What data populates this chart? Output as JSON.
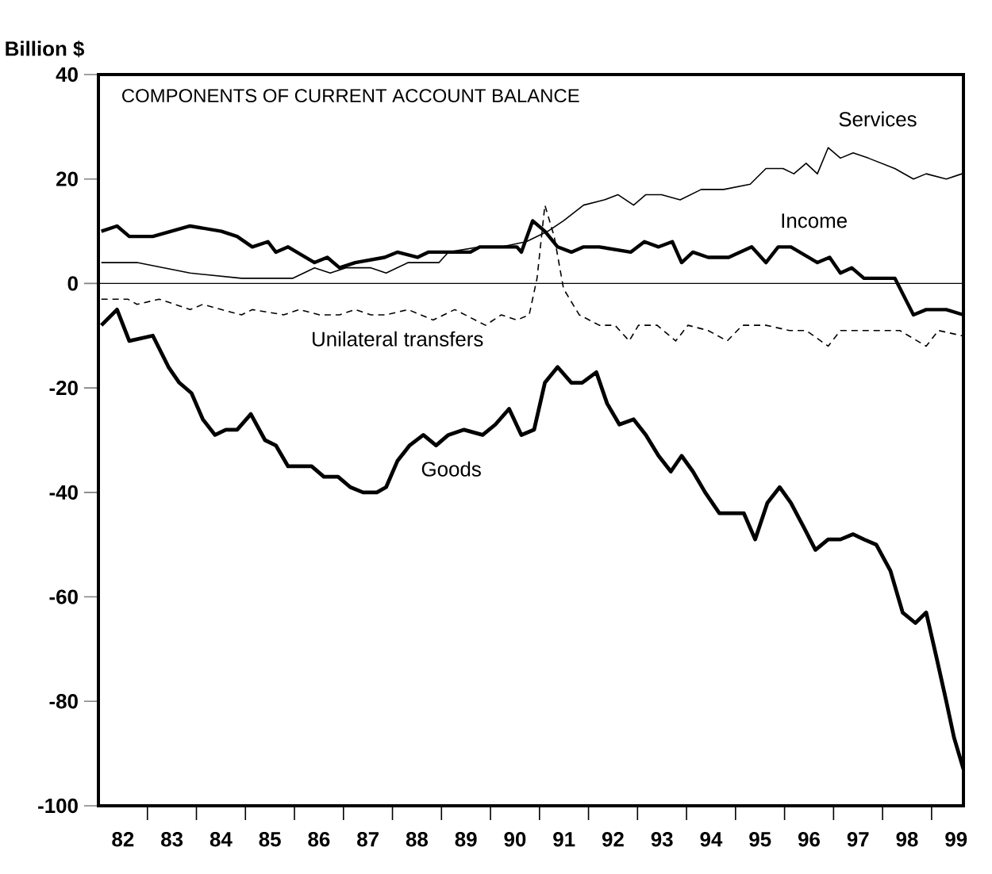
{
  "chart_data": {
    "type": "line",
    "title": "COMPONENTS OF CURRENT ACCOUNT BALANCE",
    "ylabel": "Billion $",
    "series": [
      {
        "name": "Goods",
        "color": "#000000",
        "line_style": "solid",
        "x": [
          82.06,
          82.38,
          82.63,
          83.11,
          83.43,
          83.65,
          83.9,
          84.13,
          84.38,
          84.6,
          84.83,
          85.11,
          85.4,
          85.62,
          85.87,
          86.1,
          86.35,
          86.6,
          86.89,
          87.14,
          87.4,
          87.68,
          87.87,
          88.1,
          88.35,
          88.63,
          88.89,
          89.14,
          89.46,
          89.84,
          90.1,
          90.38,
          90.63,
          90.89,
          91.11,
          91.37,
          91.65,
          91.87,
          92.16,
          92.38,
          92.63,
          92.92,
          93.17,
          93.43,
          93.68,
          93.9,
          94.13,
          94.38,
          94.67,
          94.92,
          95.17,
          95.4,
          95.65,
          95.9,
          96.13,
          96.41,
          96.63,
          96.89,
          97.14,
          97.4,
          97.62,
          97.87,
          98.16,
          98.41,
          98.67,
          98.89,
          99.11,
          99.3,
          99.46,
          99.65
        ],
        "values": [
          -8,
          -5,
          -11,
          -10,
          -16,
          -19,
          -21,
          -26,
          -29,
          -28,
          -28,
          -25,
          -30,
          -31,
          -35,
          -35,
          -35,
          -37,
          -37,
          -39,
          -40,
          -40,
          -39,
          -34,
          -31,
          -29,
          -31,
          -29,
          -28,
          -29,
          -27,
          -24,
          -29,
          -28,
          -19,
          -16,
          -19,
          -19,
          -17,
          -23,
          -27,
          -26,
          -29,
          -33,
          -36,
          -33,
          -36,
          -40,
          -44,
          -44,
          -44,
          -49,
          -42,
          -39,
          -42,
          -47,
          -51,
          -49,
          -49,
          -48,
          -49,
          -50,
          -55,
          -63,
          -65,
          -63,
          -72,
          -80,
          -87,
          -93
        ]
      },
      {
        "name": "Services",
        "color": "#000000",
        "line_style": "solid",
        "x": [
          82.06,
          82.79,
          83.87,
          84.92,
          85.56,
          85.97,
          86.41,
          86.73,
          87.05,
          87.56,
          87.87,
          88.32,
          88.95,
          89.14,
          89.78,
          90.22,
          90.73,
          91.17,
          91.49,
          91.9,
          92.32,
          92.6,
          92.92,
          93.17,
          93.49,
          93.87,
          94.3,
          94.76,
          95.3,
          95.62,
          95.97,
          96.19,
          96.44,
          96.67,
          96.89,
          97.14,
          97.4,
          97.71,
          98.25,
          98.63,
          98.89,
          99.3,
          99.62
        ],
        "values": [
          4,
          4,
          2,
          1,
          1,
          1,
          3,
          2,
          3,
          3,
          2,
          4,
          4,
          6,
          7,
          7,
          8,
          10,
          12,
          15,
          16,
          17,
          15,
          17,
          17,
          16,
          18,
          18,
          19,
          22,
          22,
          21,
          23,
          21,
          26,
          24,
          25,
          24,
          22,
          20,
          21,
          20,
          21
        ]
      },
      {
        "name": "Income",
        "color": "#000000",
        "line_style": "solid",
        "x": [
          82.06,
          82.38,
          82.63,
          83.11,
          83.87,
          84.51,
          84.83,
          85.14,
          85.46,
          85.62,
          85.87,
          86.41,
          86.67,
          86.92,
          87.24,
          87.84,
          88.1,
          88.51,
          88.73,
          89.14,
          89.59,
          89.78,
          90.22,
          90.54,
          90.63,
          90.86,
          91.11,
          91.37,
          91.65,
          91.9,
          92.22,
          92.86,
          93.14,
          93.43,
          93.71,
          93.9,
          94.13,
          94.44,
          94.86,
          95.33,
          95.62,
          95.87,
          96.13,
          96.67,
          96.92,
          97.14,
          97.37,
          97.62,
          98.25,
          98.63,
          98.89,
          99.3,
          99.65
        ],
        "values": [
          10,
          11,
          9,
          9,
          11,
          10,
          9,
          7,
          8,
          6,
          7,
          4,
          5,
          3,
          4,
          5,
          6,
          5,
          6,
          6,
          6,
          7,
          7,
          7,
          6,
          12,
          10,
          7,
          6,
          7,
          7,
          6,
          8,
          7,
          8,
          4,
          6,
          5,
          5,
          7,
          4,
          7,
          7,
          4,
          5,
          2,
          3,
          1,
          1,
          -6,
          -5,
          -5,
          -6
        ]
      },
      {
        "name": "Unilateral transfers",
        "color": "#000000",
        "line_style": "dashed",
        "x": [
          82.06,
          82.6,
          82.79,
          83.24,
          83.56,
          83.87,
          84.13,
          84.51,
          84.92,
          85.14,
          85.78,
          86.1,
          86.51,
          86.92,
          87.24,
          87.56,
          87.87,
          88.32,
          88.83,
          89.27,
          89.9,
          90.22,
          90.54,
          90.79,
          90.95,
          91.11,
          91.3,
          91.49,
          91.81,
          92.22,
          92.54,
          92.83,
          93.02,
          93.4,
          93.78,
          94.03,
          94.44,
          94.83,
          95.14,
          95.62,
          96.1,
          96.44,
          96.89,
          97.14,
          97.52,
          97.94,
          98.35,
          98.89,
          99.14,
          99.62
        ],
        "values": [
          -3,
          -3,
          -4,
          -3,
          -4,
          -5,
          -4,
          -5,
          -6,
          -5,
          -6,
          -5,
          -6,
          -6,
          -5,
          -6,
          -6,
          -5,
          -7,
          -5,
          -8,
          -6,
          -7,
          -6,
          1,
          15,
          9,
          -1,
          -6,
          -8,
          -8,
          -11,
          -8,
          -8,
          -11,
          -8,
          -9,
          -11,
          -8,
          -8,
          -9,
          -9,
          -12,
          -9,
          -9,
          -9,
          -9,
          -12,
          -9,
          -10
        ]
      }
    ],
    "xlim": [
      82,
      99.65
    ],
    "xticks": [
      {
        "value": 82.5,
        "label": "82"
      },
      {
        "value": 83,
        "label": null
      },
      {
        "value": 83.5,
        "label": "83"
      },
      {
        "value": 84,
        "label": null
      },
      {
        "value": 84.5,
        "label": "84"
      },
      {
        "value": 85,
        "label": null
      },
      {
        "value": 85.5,
        "label": "85"
      },
      {
        "value": 86,
        "label": null
      },
      {
        "value": 86.5,
        "label": "86"
      },
      {
        "value": 87,
        "label": null
      },
      {
        "value": 87.5,
        "label": "87"
      },
      {
        "value": 88,
        "label": null
      },
      {
        "value": 88.5,
        "label": "88"
      },
      {
        "value": 89,
        "label": null
      },
      {
        "value": 89.5,
        "label": "89"
      },
      {
        "value": 90,
        "label": null
      },
      {
        "value": 90.5,
        "label": "90"
      },
      {
        "value": 91,
        "label": null
      },
      {
        "value": 91.5,
        "label": "91"
      },
      {
        "value": 92,
        "label": null
      },
      {
        "value": 92.5,
        "label": "92"
      },
      {
        "value": 93,
        "label": null
      },
      {
        "value": 93.5,
        "label": "93"
      },
      {
        "value": 94,
        "label": null
      },
      {
        "value": 94.5,
        "label": "94"
      },
      {
        "value": 95,
        "label": null
      },
      {
        "value": 95.5,
        "label": "95"
      },
      {
        "value": 96,
        "label": null
      },
      {
        "value": 96.5,
        "label": "96"
      },
      {
        "value": 97,
        "label": null
      },
      {
        "value": 97.5,
        "label": "97"
      },
      {
        "value": 98,
        "label": null
      },
      {
        "value": 98.5,
        "label": "98"
      },
      {
        "value": 99,
        "label": null
      },
      {
        "value": 99.5,
        "label": "99"
      }
    ],
    "ylim": [
      -100,
      40
    ],
    "yticks": [
      -100,
      -80,
      -60,
      -40,
      -20,
      0,
      20,
      40
    ],
    "ref_lines": [
      {
        "axis": "y",
        "value": 0,
        "color": "#000000"
      }
    ],
    "marker": "none"
  }
}
